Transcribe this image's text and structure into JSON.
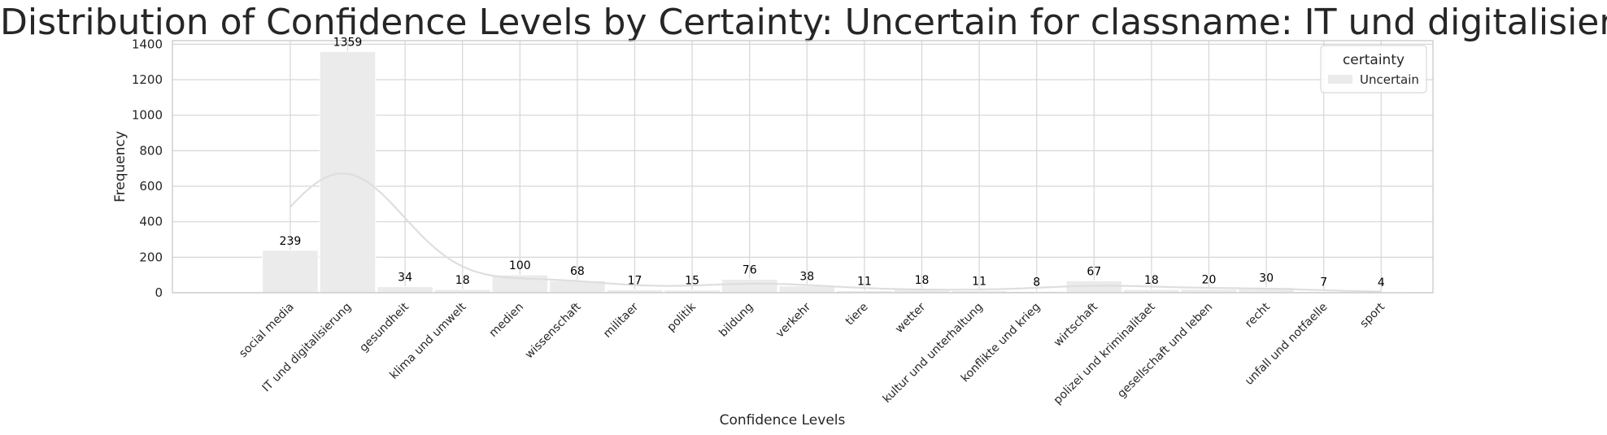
{
  "chart_data": {
    "type": "bar",
    "title": "Distribution of Confidence Levels by Certainty: Uncertain for classname: IT und digitalisierung",
    "xlabel": "Confidence Levels",
    "ylabel": "Frequency",
    "ylim": [
      0,
      1420
    ],
    "yticks": [
      0,
      200,
      400,
      600,
      800,
      1000,
      1200,
      1400
    ],
    "grid": true,
    "kde_curve": true,
    "categories": [
      "social media",
      "IT und digitalisierung",
      "gesundheit",
      "klima und umwelt",
      "medien",
      "wissenschaft",
      "militaer",
      "politik",
      "bildung",
      "verkehr",
      "tiere",
      "wetter",
      "kultur und unterhaltung",
      "konflikte und krieg",
      "wirtschaft",
      "polizei und kriminalitaet",
      "gesellschaft und leben",
      "recht",
      "unfall und notfaelle",
      "sport"
    ],
    "series": [
      {
        "name": "Uncertain",
        "values": [
          239,
          1359,
          34,
          18,
          100,
          68,
          17,
          15,
          76,
          38,
          11,
          18,
          11,
          8,
          67,
          18,
          20,
          30,
          7,
          4
        ]
      }
    ],
    "legend": {
      "title": "certainty",
      "placement": "top-right"
    },
    "colors": {
      "bar": "#ebebeb",
      "kde": "#dedede",
      "grid": "#d6d6d6",
      "axis": "#c8c8c8"
    }
  }
}
